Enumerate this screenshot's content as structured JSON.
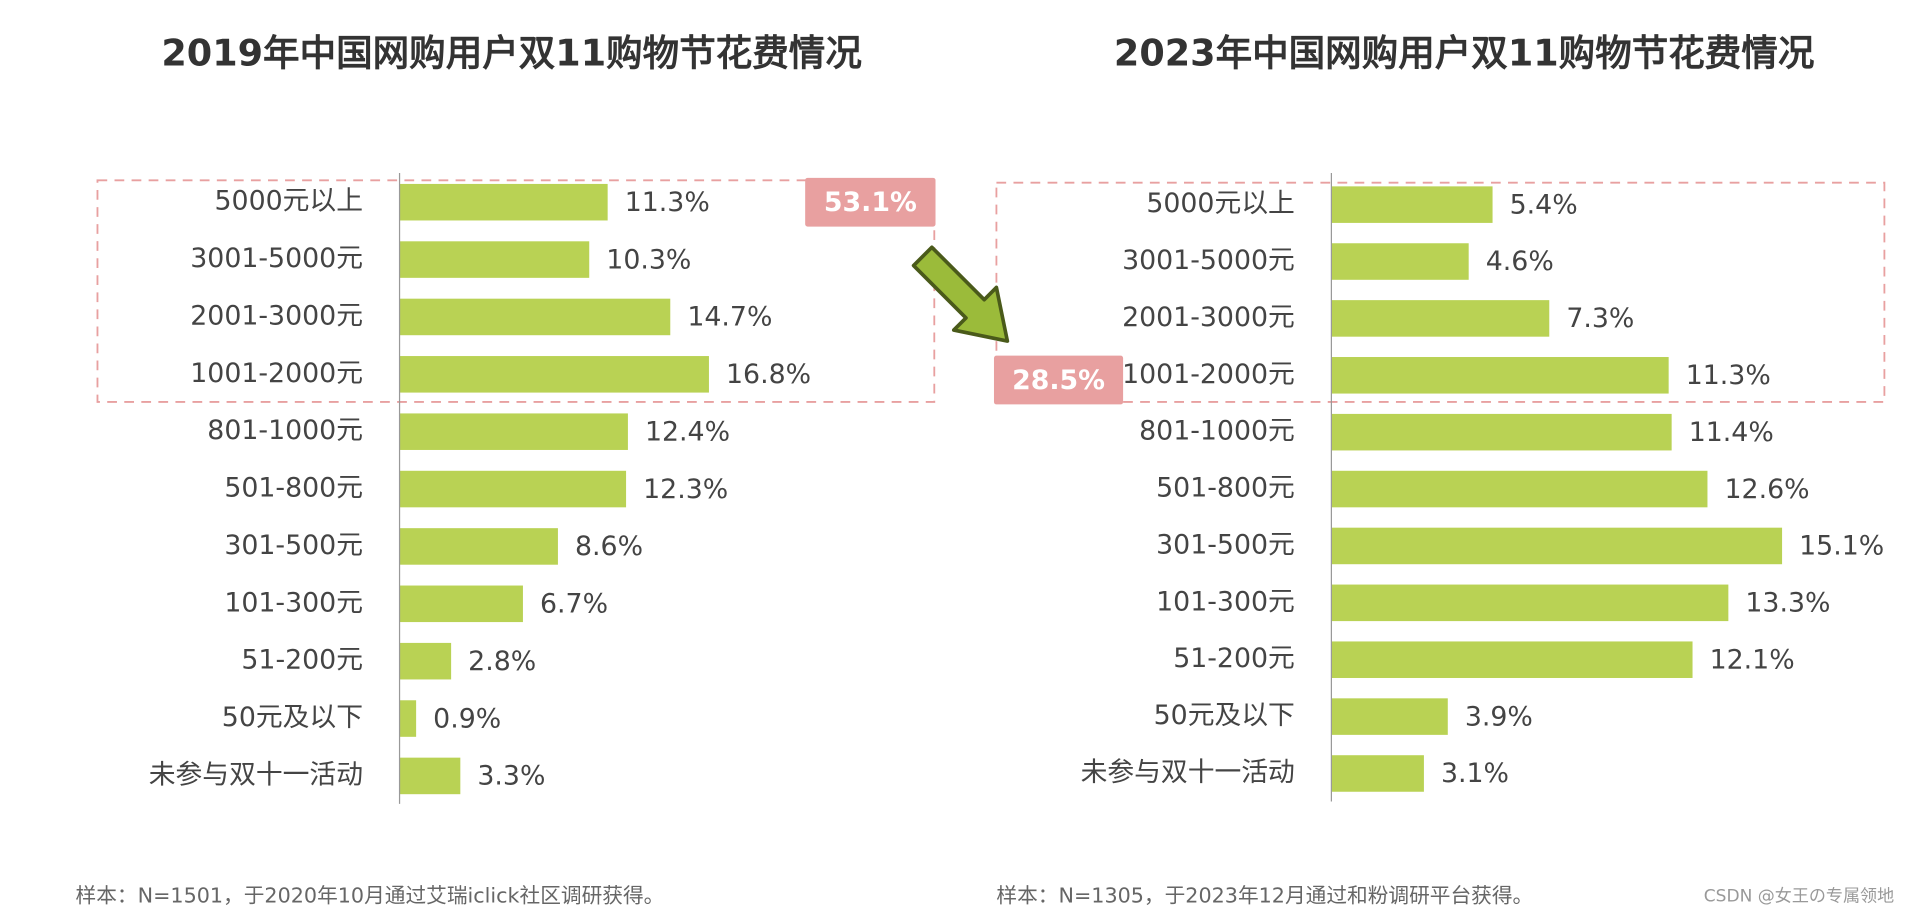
{
  "chart_data": [
    {
      "type": "bar",
      "orientation": "horizontal",
      "title": "2019年中国网购用户双11购物节花费情况",
      "categories": [
        "5000元以上",
        "3001-5000元",
        "2001-3000元",
        "1001-2000元",
        "801-1000元",
        "501-800元",
        "301-500元",
        "101-300元",
        "51-200元",
        "50元及以下",
        "未参与双十一活动"
      ],
      "values": [
        11.3,
        10.3,
        14.7,
        16.8,
        12.4,
        12.3,
        8.6,
        6.7,
        2.8,
        0.9,
        3.3
      ],
      "value_labels": [
        "11.3%",
        "10.3%",
        "14.7%",
        "16.8%",
        "12.4%",
        "12.3%",
        "8.6%",
        "6.7%",
        "2.8%",
        "0.9%",
        "3.3%"
      ],
      "color": "#b9d254",
      "annotation": "53.1%",
      "note": "样本：N=1501，于2020年10月通过艾瑞iclick社区调研获得。"
    },
    {
      "type": "bar",
      "orientation": "horizontal",
      "title": "2023年中国网购用户双11购物节花费情况",
      "categories": [
        "5000元以上",
        "3001-5000元",
        "2001-3000元",
        "1001-2000元",
        "801-1000元",
        "501-800元",
        "301-500元",
        "101-300元",
        "51-200元",
        "50元及以下",
        "未参与双十一活动"
      ],
      "values": [
        5.4,
        4.6,
        7.3,
        11.3,
        11.4,
        12.6,
        15.1,
        13.3,
        12.1,
        3.9,
        3.1
      ],
      "value_labels": [
        "5.4%",
        "4.6%",
        "7.3%",
        "11.3%",
        "11.4%",
        "12.6%",
        "15.1%",
        "13.3%",
        "12.1%",
        "3.9%",
        "3.1%"
      ],
      "color": "#b9d254",
      "annotation": "28.5%",
      "note": "样本：N=1305，于2023年12月通过和粉调研平台获得。"
    }
  ],
  "watermark": "CSDN @女王の专属领地"
}
